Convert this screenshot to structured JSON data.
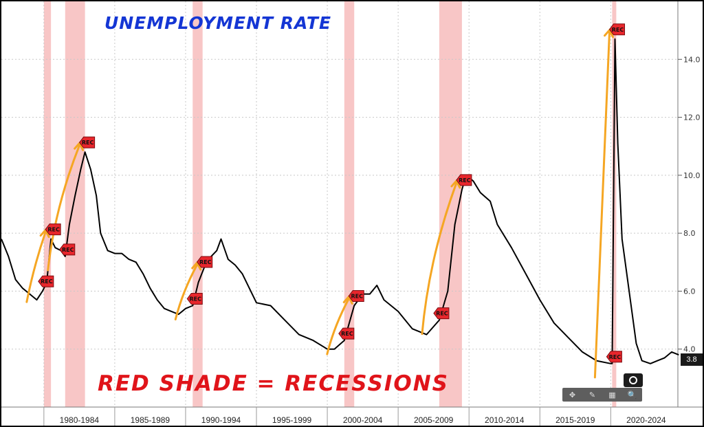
{
  "chart_data": {
    "type": "line",
    "title": "UNEMPLOYMENT RATE",
    "footnote": "RED SHADE = RECESSIONS",
    "x_range": [
      1977.0,
      2026.0
    ],
    "ylim": [
      2.0,
      16.0
    ],
    "y_ticks": [
      "4.0",
      "6.0",
      "8.0",
      "10.0",
      "12.0",
      "14.0"
    ],
    "x_tick_labels": [
      "1980-1984",
      "1985-1989",
      "1990-1994",
      "1995-1999",
      "2000-2004",
      "2005-2009",
      "2010-2014",
      "2015-2019",
      "2020-2024"
    ],
    "last_value": "3.8",
    "grid": true,
    "line_color": "#000000",
    "recession_color": "#f08080",
    "arrow_color": "#f5a623",
    "marker_label": "REC",
    "recessions": [
      [
        1980.0,
        1980.5
      ],
      [
        1981.5,
        1982.9
      ],
      [
        1990.5,
        1991.2
      ],
      [
        2001.2,
        2001.9
      ],
      [
        2007.9,
        2009.5
      ],
      [
        2020.1,
        2020.3
      ]
    ],
    "points": [
      [
        1977.0,
        7.8
      ],
      [
        1977.5,
        7.2
      ],
      [
        1978.0,
        6.4
      ],
      [
        1978.5,
        6.1
      ],
      [
        1979.0,
        5.9
      ],
      [
        1979.5,
        5.7
      ],
      [
        1979.9,
        6.0
      ],
      [
        1980.2,
        6.3
      ],
      [
        1980.5,
        7.8
      ],
      [
        1980.8,
        7.5
      ],
      [
        1981.2,
        7.4
      ],
      [
        1981.5,
        7.2
      ],
      [
        1981.8,
        8.3
      ],
      [
        1982.2,
        9.3
      ],
      [
        1982.6,
        10.2
      ],
      [
        1982.9,
        10.8
      ],
      [
        1983.3,
        10.2
      ],
      [
        1983.7,
        9.3
      ],
      [
        1984.0,
        8.0
      ],
      [
        1984.5,
        7.4
      ],
      [
        1985.0,
        7.3
      ],
      [
        1985.5,
        7.3
      ],
      [
        1986.0,
        7.1
      ],
      [
        1986.5,
        7.0
      ],
      [
        1987.0,
        6.6
      ],
      [
        1987.5,
        6.1
      ],
      [
        1988.0,
        5.7
      ],
      [
        1988.5,
        5.4
      ],
      [
        1989.0,
        5.3
      ],
      [
        1989.5,
        5.2
      ],
      [
        1990.0,
        5.4
      ],
      [
        1990.5,
        5.5
      ],
      [
        1990.9,
        6.3
      ],
      [
        1991.3,
        6.8
      ],
      [
        1991.8,
        7.2
      ],
      [
        1992.2,
        7.4
      ],
      [
        1992.5,
        7.8
      ],
      [
        1993.0,
        7.1
      ],
      [
        1993.5,
        6.9
      ],
      [
        1994.0,
        6.6
      ],
      [
        1994.5,
        6.1
      ],
      [
        1995.0,
        5.6
      ],
      [
        1996.0,
        5.5
      ],
      [
        1997.0,
        5.0
      ],
      [
        1998.0,
        4.5
      ],
      [
        1999.0,
        4.3
      ],
      [
        2000.0,
        4.0
      ],
      [
        2000.5,
        4.0
      ],
      [
        2001.2,
        4.3
      ],
      [
        2001.9,
        5.5
      ],
      [
        2002.5,
        5.9
      ],
      [
        2003.0,
        5.9
      ],
      [
        2003.5,
        6.2
      ],
      [
        2004.0,
        5.7
      ],
      [
        2005.0,
        5.3
      ],
      [
        2006.0,
        4.7
      ],
      [
        2007.0,
        4.5
      ],
      [
        2007.9,
        5.0
      ],
      [
        2008.5,
        6.0
      ],
      [
        2009.0,
        8.3
      ],
      [
        2009.5,
        9.5
      ],
      [
        2009.8,
        10.0
      ],
      [
        2010.3,
        9.8
      ],
      [
        2010.8,
        9.4
      ],
      [
        2011.5,
        9.1
      ],
      [
        2012.0,
        8.3
      ],
      [
        2013.0,
        7.5
      ],
      [
        2014.0,
        6.6
      ],
      [
        2015.0,
        5.7
      ],
      [
        2016.0,
        4.9
      ],
      [
        2017.0,
        4.4
      ],
      [
        2018.0,
        3.9
      ],
      [
        2019.0,
        3.6
      ],
      [
        2020.0,
        3.5
      ],
      [
        2020.1,
        3.5
      ],
      [
        2020.3,
        14.7
      ],
      [
        2020.5,
        11.1
      ],
      [
        2020.8,
        7.8
      ],
      [
        2021.3,
        6.0
      ],
      [
        2021.8,
        4.2
      ],
      [
        2022.2,
        3.6
      ],
      [
        2022.8,
        3.5
      ],
      [
        2023.3,
        3.6
      ],
      [
        2023.8,
        3.7
      ],
      [
        2024.3,
        3.9
      ],
      [
        2024.8,
        3.8
      ]
    ]
  }
}
